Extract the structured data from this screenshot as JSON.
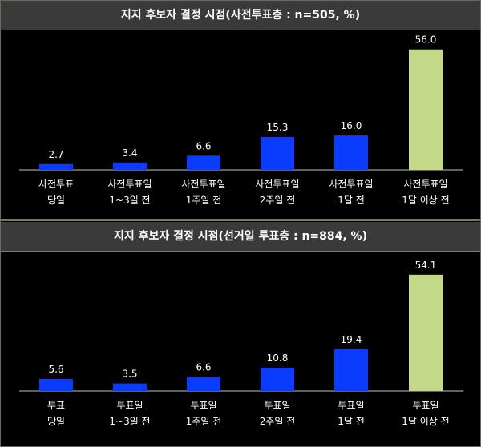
{
  "chart_data": [
    {
      "type": "bar",
      "title": "지지 후보자 결정 시점(사전투표층 : n=505, %)",
      "categories": [
        [
          "사전투표",
          "당일"
        ],
        [
          "사전투표일",
          "1~3일 전"
        ],
        [
          "사전투표일",
          "1주일 전"
        ],
        [
          "사전투표일",
          "2주일 전"
        ],
        [
          "사전투표일",
          "1달 전"
        ],
        [
          "사전투표일",
          "1달 이상 전"
        ]
      ],
      "values": [
        2.7,
        3.4,
        6.6,
        15.3,
        16.0,
        56.0
      ],
      "value_labels": [
        "2.7",
        "3.4",
        "6.6",
        "15.3",
        "16.0",
        "56.0"
      ],
      "ylim": [
        0,
        60
      ],
      "grid": false,
      "colors": [
        "#0a3cff",
        "#0a3cff",
        "#0a3cff",
        "#0a3cff",
        "#0a3cff",
        "#c4d88a"
      ]
    },
    {
      "type": "bar",
      "title": "지지 후보자 결정 시점(선거일 투표층 : n=884, %)",
      "categories": [
        [
          "투표",
          "당일"
        ],
        [
          "투표일",
          "1~3일 전"
        ],
        [
          "투표일",
          "1주일 전"
        ],
        [
          "투표일",
          "2주일 전"
        ],
        [
          "투표일",
          "1달 전"
        ],
        [
          "투표일",
          "1달 이상 전"
        ]
      ],
      "values": [
        5.6,
        3.5,
        6.6,
        10.8,
        19.4,
        54.1
      ],
      "value_labels": [
        "5.6",
        "3.5",
        "6.6",
        "10.8",
        "19.4",
        "54.1"
      ],
      "ylim": [
        0,
        60
      ],
      "grid": false,
      "colors": [
        "#0a3cff",
        "#0a3cff",
        "#0a3cff",
        "#0a3cff",
        "#0a3cff",
        "#c4d88a"
      ]
    }
  ]
}
